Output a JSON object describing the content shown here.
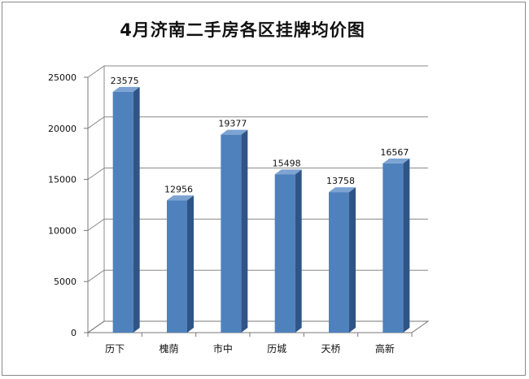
{
  "chart_data": {
    "type": "bar",
    "title": "4月济南二手房各区挂牌均价图",
    "categories": [
      "历下",
      "槐荫",
      "市中",
      "历城",
      "天桥",
      "高新"
    ],
    "values": [
      23575,
      12956,
      19377,
      15498,
      13758,
      16567
    ],
    "yticks": [
      0,
      5000,
      10000,
      15000,
      20000,
      25000
    ],
    "ylim": [
      0,
      25000
    ],
    "grid": true,
    "legend": "none",
    "three_d": true,
    "colors": {
      "bar_front": "#4f81bd",
      "bar_side": "#2f5586",
      "bar_top": "#7da3d3",
      "gridline": "#888888"
    }
  }
}
